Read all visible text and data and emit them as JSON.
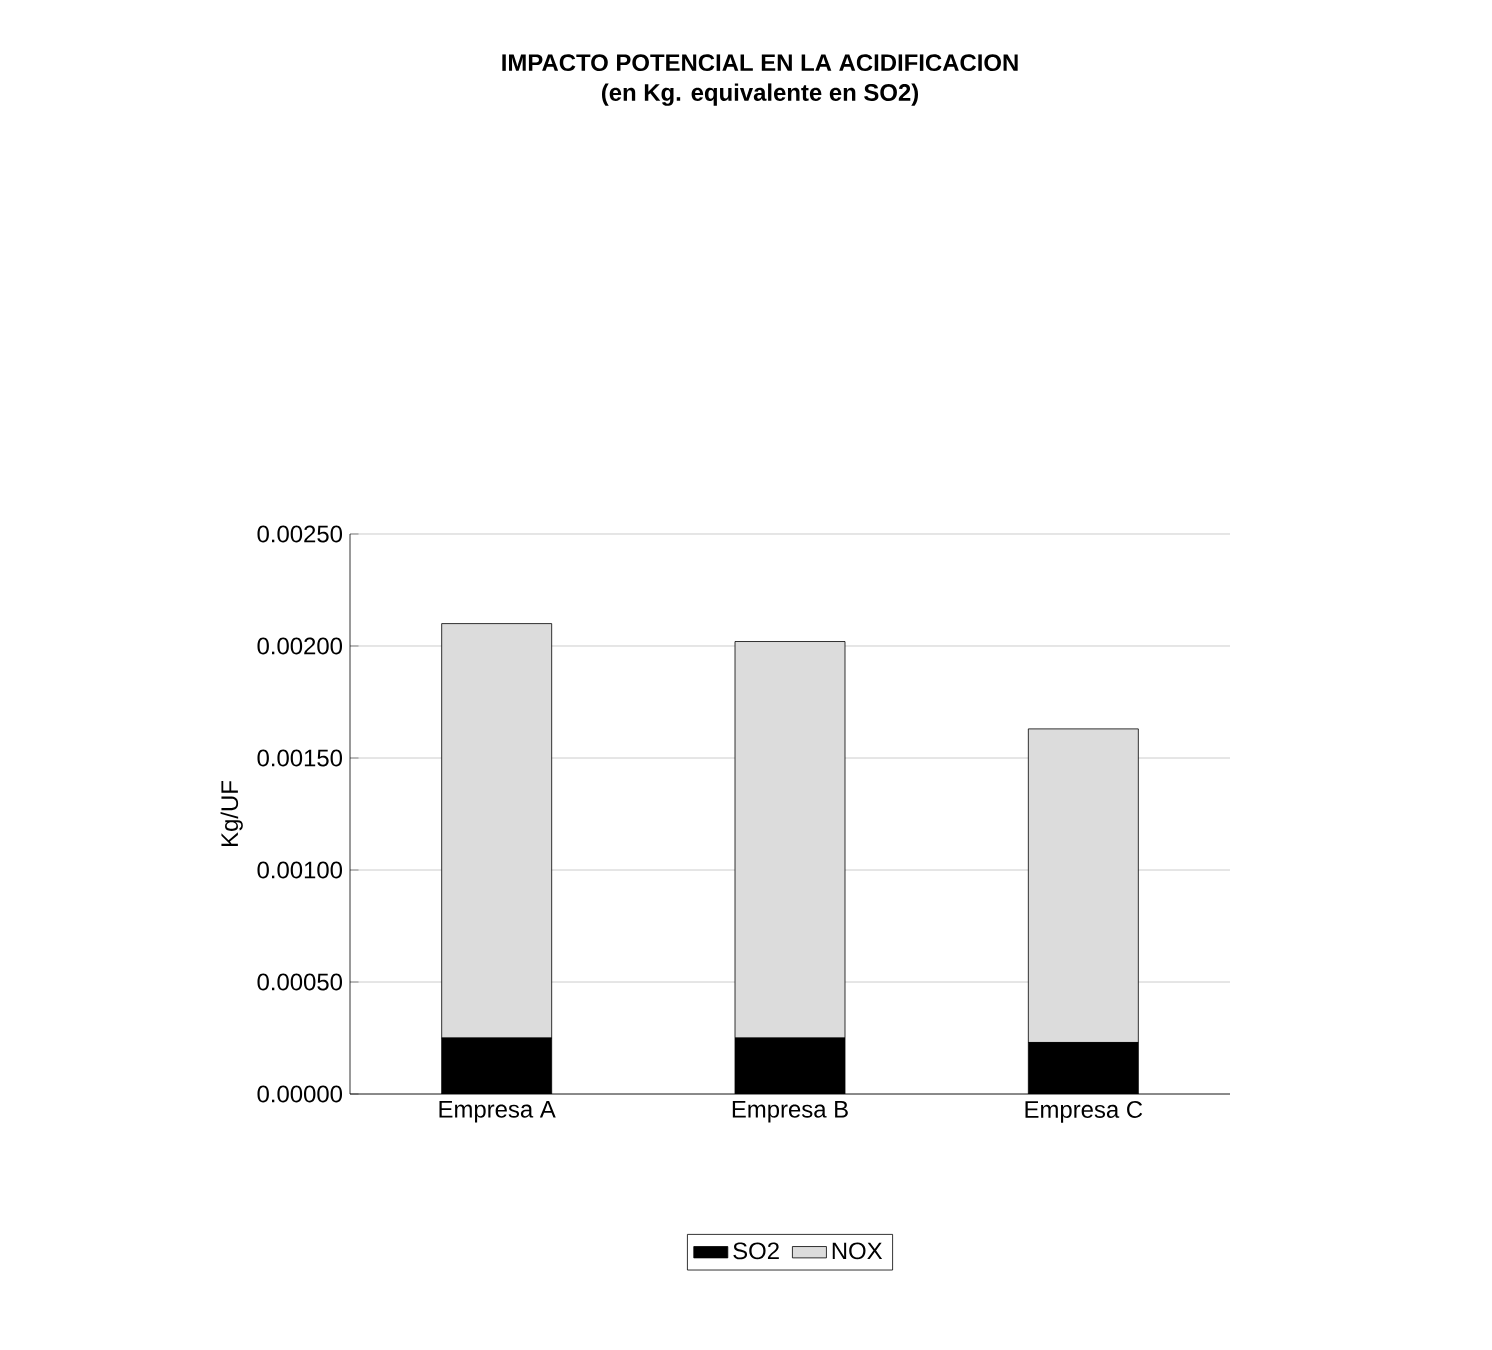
{
  "chart_data": {
    "type": "bar",
    "title": "IMPACTO POTENCIAL EN LA ACIDIFICACION",
    "subtitle": "(en Kg. equivalente en SO2)",
    "ylabel": "Kg/UF",
    "categories": [
      "Empresa A",
      "Empresa B",
      "Empresa C"
    ],
    "stacked": true,
    "series": [
      {
        "name": "SO2",
        "color": "#000000",
        "values": [
          0.00025,
          0.00025,
          0.00023
        ]
      },
      {
        "name": "NOX",
        "color": "#dcdcdc",
        "values": [
          0.00185,
          0.00177,
          0.0014
        ]
      }
    ],
    "ylim": [
      0,
      0.0025
    ],
    "yticks": [
      {
        "value": 0,
        "label": "0.00000"
      },
      {
        "value": 0.0005,
        "label": "0.00050"
      },
      {
        "value": 0.001,
        "label": "0.00100"
      },
      {
        "value": 0.0015,
        "label": "0.00150"
      },
      {
        "value": 0.002,
        "label": "0.00200"
      },
      {
        "value": 0.0025,
        "label": "0.00250"
      }
    ],
    "grid": "y",
    "legend": "bottom"
  }
}
